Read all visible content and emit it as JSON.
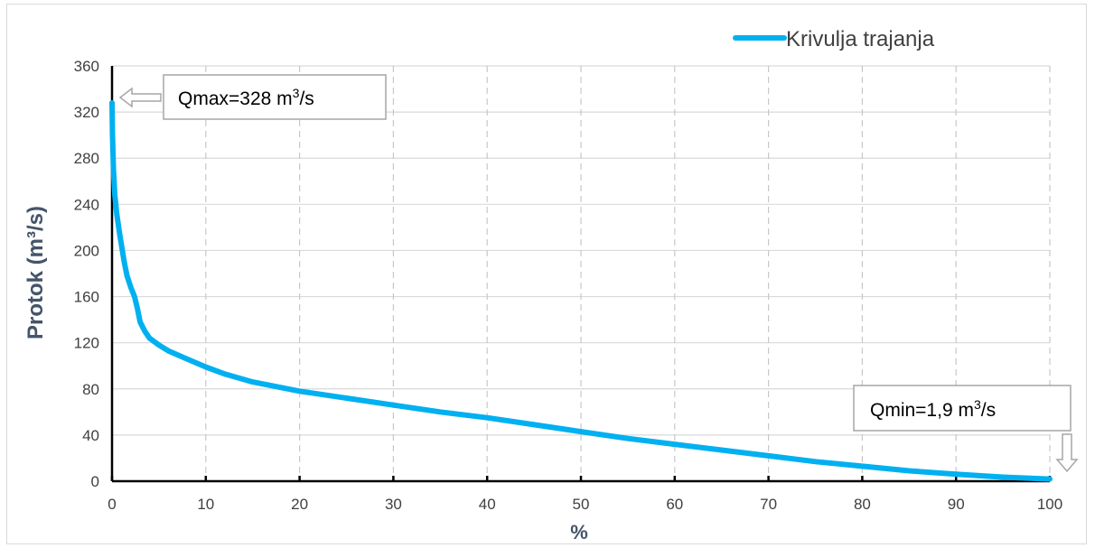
{
  "chart_data": {
    "type": "line",
    "title": "",
    "xlabel": "%",
    "ylabel": "Protok (m³/s)",
    "xlim": [
      0,
      100
    ],
    "ylim": [
      0,
      360
    ],
    "x_ticks": [
      "0",
      "10",
      "20",
      "30",
      "40",
      "50",
      "60",
      "70",
      "80",
      "90",
      "100"
    ],
    "y_ticks": [
      "0",
      "40",
      "80",
      "120",
      "160",
      "200",
      "240",
      "280",
      "320",
      "360"
    ],
    "grid": "dashed vertical, solid horizontal",
    "legend_position": "top-right",
    "series": [
      {
        "name": "Krivulja trajanja",
        "color": "#00b0f0",
        "x": [
          0,
          0.05,
          0.15,
          0.3,
          0.5,
          0.8,
          1.0,
          1.3,
          1.6,
          2.0,
          2.4,
          2.7,
          3.0,
          3.5,
          4.0,
          5,
          6,
          8,
          10,
          12,
          15,
          20,
          25,
          30,
          35,
          40,
          45,
          50,
          55,
          60,
          65,
          70,
          75,
          80,
          85,
          90,
          95,
          100
        ],
        "values": [
          328,
          300,
          270,
          248,
          232,
          215,
          205,
          190,
          178,
          168,
          160,
          150,
          138,
          130,
          124,
          118,
          113,
          106,
          99,
          93,
          86,
          78,
          72,
          66,
          60,
          55,
          49,
          43,
          37,
          32,
          27,
          22,
          17,
          13,
          9,
          6,
          3.5,
          1.9
        ]
      }
    ],
    "annotations": [
      {
        "text": "Qmax=328 m³/s",
        "x": 0,
        "y": 328
      },
      {
        "text": "Qmin=1,9 m³/s",
        "x": 100,
        "y": 1.9
      }
    ]
  }
}
